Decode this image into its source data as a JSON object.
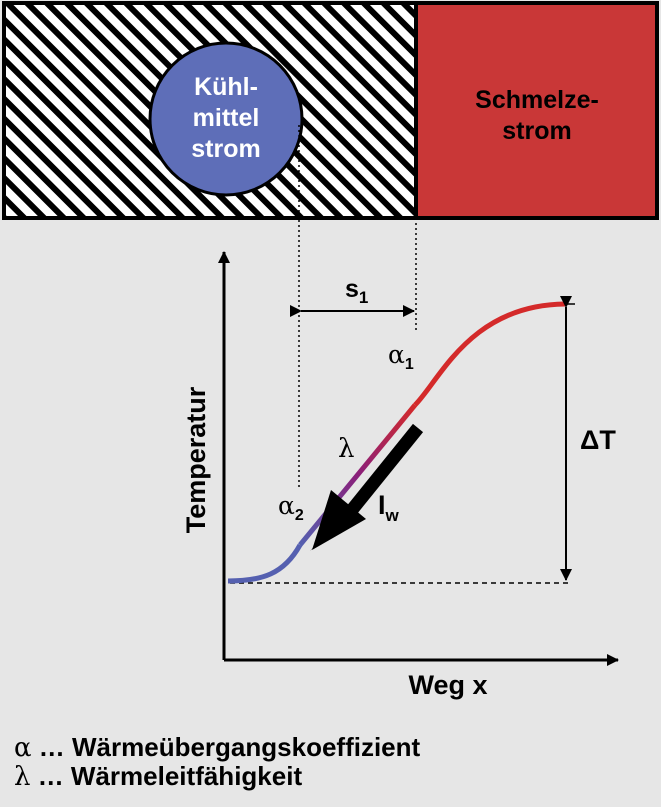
{
  "coolant": {
    "line1": "Kühl-",
    "line2": "mittel",
    "line3": "strom",
    "fill": "#5e6eb8"
  },
  "melt": {
    "line1": "Schmelze-",
    "line2": "strom",
    "fill": "#c93737"
  },
  "plot": {
    "y_axis_label": "Temperatur",
    "x_axis_label": "Weg x",
    "distance_label": "s",
    "distance_sub": "1",
    "alpha1_sym": "α",
    "alpha1_sub": "1",
    "alpha2_sym": "α",
    "alpha2_sub": "2",
    "lambda_sym": "λ",
    "heat_flow_label": "I",
    "heat_flow_sub": "w",
    "delta_t_label": "ΔT",
    "curve_colors": {
      "hot": "#d42a2a",
      "mid": "#8a1f7a",
      "cold": "#5560b0"
    }
  },
  "legend": [
    {
      "symbol": "α",
      "text": " … Wärmeübergangskoeffizient"
    },
    {
      "symbol": "λ",
      "text": " … Wärmeleitfähigkeit"
    }
  ]
}
